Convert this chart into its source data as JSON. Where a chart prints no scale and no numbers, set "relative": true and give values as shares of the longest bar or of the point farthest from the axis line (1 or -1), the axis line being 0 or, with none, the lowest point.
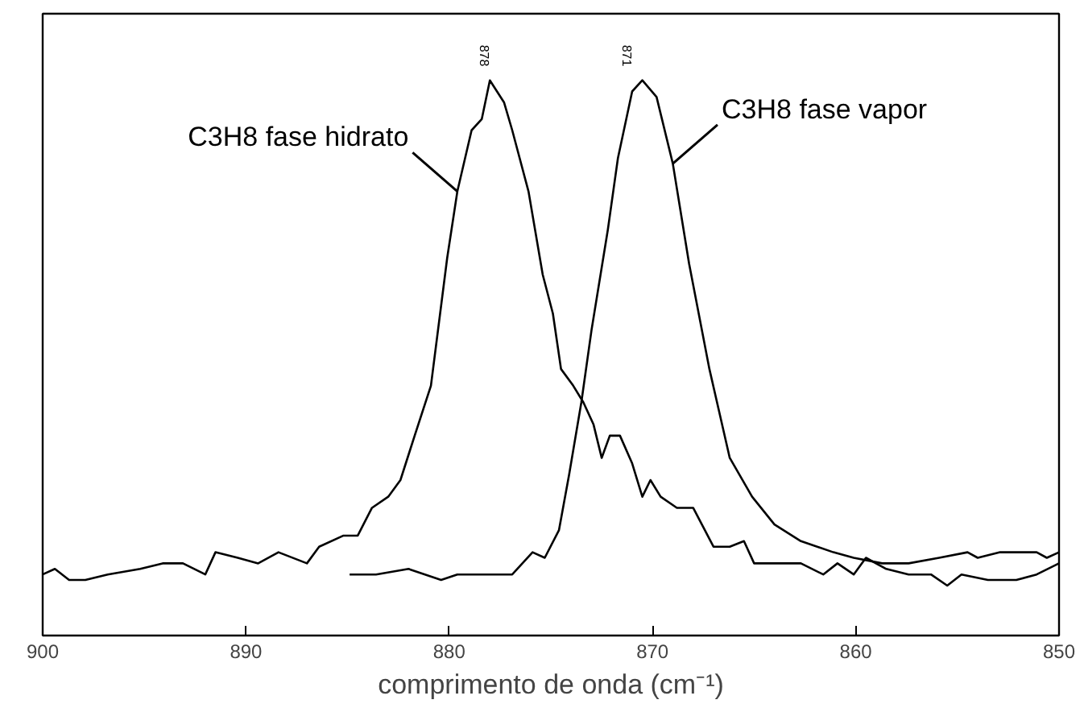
{
  "chart_data": {
    "type": "line",
    "relative": true,
    "xlabel": "comprimento de onda (cm⁻¹)",
    "xlim": [
      900,
      850
    ],
    "xticks": [
      900,
      890,
      880,
      870,
      860,
      850
    ],
    "grid": false,
    "marker": "none",
    "line_style": "solid",
    "series": [
      {
        "name": "C3H8 fase hidrato",
        "color": "#000000",
        "x": [
          900.0,
          899.4,
          898.7,
          897.9,
          896.8,
          895.2,
          894.1,
          893.1,
          892.0,
          891.5,
          890.4,
          889.4,
          888.4,
          887.0,
          886.4,
          885.2,
          884.5,
          883.8,
          883.0,
          882.4,
          881.7,
          880.9,
          880.1,
          879.6,
          878.9,
          878.4,
          878.0,
          877.3,
          876.9,
          876.1,
          875.4,
          874.9,
          874.5,
          873.9,
          873.4,
          872.9,
          872.5,
          872.1,
          871.6,
          871.0,
          870.5,
          870.1,
          869.6,
          868.8,
          868.0,
          867.0,
          866.2,
          865.5,
          865.0,
          863.8,
          862.7,
          861.6,
          860.9,
          860.1,
          859.5,
          858.5,
          857.4,
          856.3,
          855.5,
          854.8,
          853.5,
          852.1,
          851.1,
          850.0
        ],
        "values": [
          0.11,
          0.12,
          0.1,
          0.1,
          0.11,
          0.12,
          0.13,
          0.13,
          0.11,
          0.15,
          0.14,
          0.13,
          0.15,
          0.13,
          0.16,
          0.18,
          0.18,
          0.23,
          0.25,
          0.28,
          0.36,
          0.45,
          0.68,
          0.8,
          0.91,
          0.93,
          1.0,
          0.96,
          0.91,
          0.8,
          0.65,
          0.58,
          0.48,
          0.45,
          0.42,
          0.38,
          0.32,
          0.36,
          0.36,
          0.31,
          0.25,
          0.28,
          0.25,
          0.23,
          0.23,
          0.16,
          0.16,
          0.17,
          0.13,
          0.13,
          0.13,
          0.11,
          0.13,
          0.11,
          0.14,
          0.12,
          0.11,
          0.11,
          0.09,
          0.11,
          0.1,
          0.1,
          0.11,
          0.13
        ]
      },
      {
        "name": "C3H8 fase vapor",
        "color": "#000000",
        "x": [
          884.9,
          883.6,
          882.0,
          880.4,
          879.6,
          878.3,
          876.9,
          875.9,
          875.3,
          874.6,
          874.1,
          873.5,
          873.0,
          872.2,
          871.7,
          871.0,
          870.5,
          869.8,
          869.0,
          868.2,
          867.2,
          866.2,
          865.1,
          864.0,
          862.7,
          861.1,
          860.1,
          858.7,
          857.4,
          855.9,
          854.5,
          854.0,
          852.9,
          851.1,
          850.6,
          850.0
        ],
        "values": [
          0.11,
          0.11,
          0.12,
          0.1,
          0.11,
          0.11,
          0.11,
          0.15,
          0.14,
          0.19,
          0.29,
          0.42,
          0.55,
          0.73,
          0.86,
          0.98,
          1.0,
          0.97,
          0.85,
          0.67,
          0.48,
          0.32,
          0.25,
          0.2,
          0.17,
          0.15,
          0.14,
          0.13,
          0.13,
          0.14,
          0.15,
          0.14,
          0.15,
          0.15,
          0.14,
          0.15
        ]
      }
    ],
    "annotations": [
      {
        "text": "878",
        "x": 878,
        "y": 1.0
      },
      {
        "text": "871",
        "x": 871,
        "y": 1.0
      }
    ]
  }
}
